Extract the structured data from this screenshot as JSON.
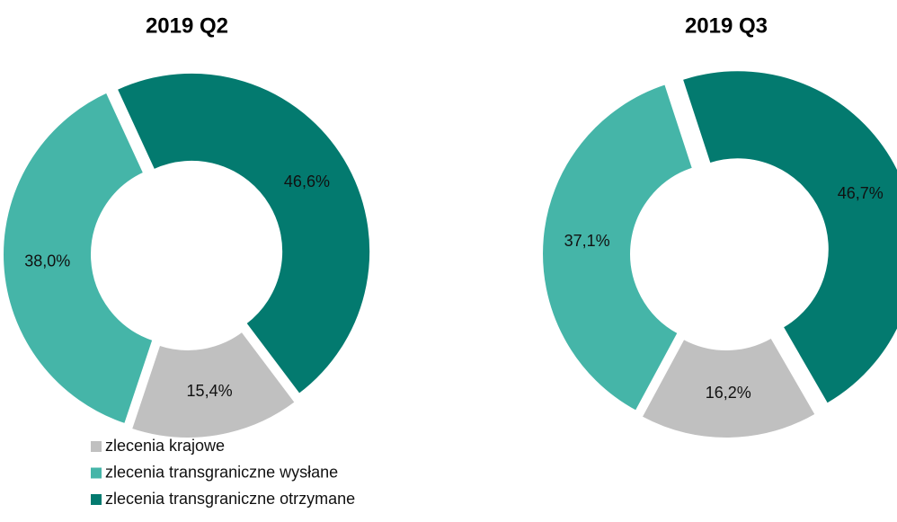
{
  "chart_data": [
    {
      "type": "pie",
      "title": "2019 Q2",
      "values": [
        15.4,
        38.0,
        46.6
      ],
      "value_labels": [
        "15,4%",
        "38,0%",
        "46,6%"
      ]
    },
    {
      "type": "pie",
      "title": "2019 Q3",
      "values": [
        16.2,
        37.1,
        46.7
      ],
      "value_labels": [
        "16,2%",
        "37,1%",
        "46,7%"
      ]
    }
  ],
  "legend": {
    "categories": [
      "zlecenia krajowe",
      "zlecenia transgraniczne wysłane",
      "zlecenia transgraniczne otrzymane"
    ],
    "colors": [
      "#c0c0c0",
      "#45b5a8",
      "#037a6f"
    ]
  }
}
